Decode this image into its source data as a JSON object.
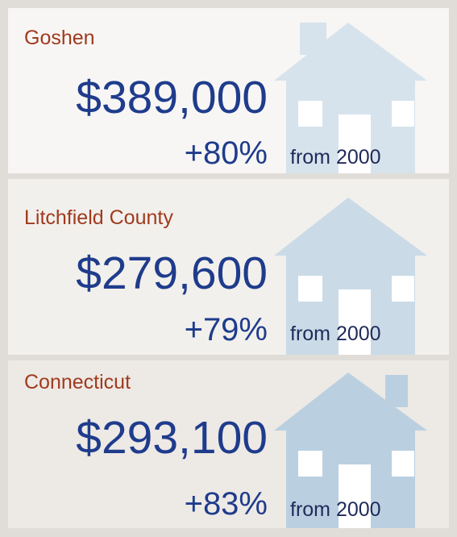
{
  "panels": [
    {
      "name": "Goshen",
      "value": "$389,000",
      "change": "+80%",
      "suffix": "from 2000"
    },
    {
      "name": "Litchfield County",
      "value": "$279,600",
      "change": "+79%",
      "suffix": "from 2000"
    },
    {
      "name": "Connecticut",
      "value": "$293,100",
      "change": "+83%",
      "suffix": "from 2000"
    }
  ]
}
